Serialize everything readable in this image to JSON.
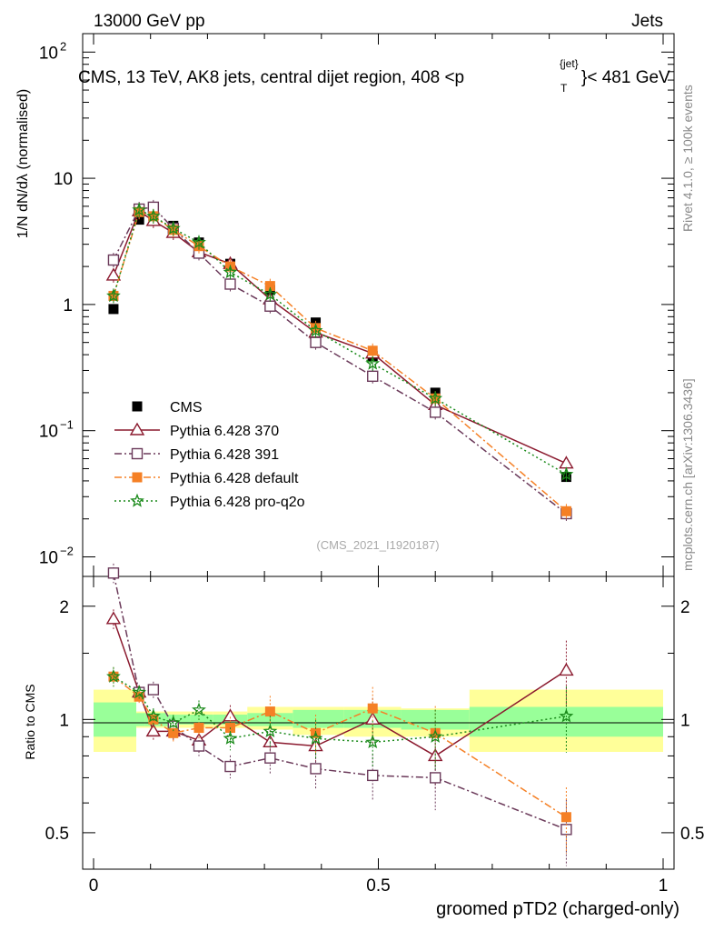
{
  "header": {
    "left": "13000 GeV pp",
    "right": "Jets",
    "title": "CMS, 13 TeV, AK8 jets, central dijet region, 408 <p",
    "title_sup": "{jet}",
    "title_sub": "T",
    "title_end": "}< 481 GeV",
    "watermark": "(CMS_2021_I1920187)"
  },
  "side": {
    "rivet": "Rivet 4.1.0, ≥ 100k events",
    "mcplots": "mcplots.cern.ch [arXiv:1306.3436]"
  },
  "axes": {
    "ylabel_main": "1/N dN/dλ (normalised)",
    "ylabel_ratio": "Ratio to CMS",
    "xlabel": "groomed pTD2 (charged-only)",
    "x_ticks": [
      "0",
      "0.5",
      "1"
    ],
    "y_ticks_main": [
      "10^-2",
      "10^-1",
      "1",
      "10",
      "10^2"
    ],
    "y_ticks_ratio": [
      "0.5",
      "1",
      "2"
    ]
  },
  "chart_data": {
    "type": "line",
    "xlabel": "groomed pTD2 (charged-only)",
    "ylabel": "1/N dN/dλ",
    "xlim": [
      0,
      1
    ],
    "ylim_main": [
      0.007,
      140
    ],
    "yscale_main": "log",
    "ylim_ratio": [
      0.4,
      2.4
    ],
    "yscale_ratio": "log",
    "bins": [
      [
        0,
        0.075
      ],
      [
        0.075,
        0.09
      ],
      [
        0.09,
        0.13
      ],
      [
        0.13,
        0.17
      ],
      [
        0.17,
        0.21
      ],
      [
        0.21,
        0.27
      ],
      [
        0.27,
        0.35
      ],
      [
        0.35,
        0.44
      ],
      [
        0.44,
        0.54
      ],
      [
        0.54,
        0.66
      ],
      [
        0.66,
        1.0
      ]
    ],
    "x": [
      0.035,
      0.08,
      0.105,
      0.14,
      0.185,
      0.24,
      0.31,
      0.39,
      0.49,
      0.6,
      0.83
    ],
    "series": [
      {
        "name": "CMS",
        "color": "#000000",
        "marker": "square-filled",
        "values": [
          0.92,
          4.7,
          5.0,
          4.2,
          3.1,
          2.1,
          1.3,
          0.72,
          0.39,
          0.2,
          0.043
        ]
      },
      {
        "name": "Pythia 6.428 370",
        "color": "#8b1a2f",
        "marker": "triangle-open",
        "line": "solid",
        "values": [
          1.7,
          5.5,
          4.6,
          3.7,
          2.6,
          2.1,
          1.1,
          0.6,
          0.41,
          0.16,
          0.055
        ],
        "ratio": [
          1.85,
          1.18,
          0.93,
          0.93,
          0.88,
          1.02,
          0.87,
          0.85,
          1.0,
          0.8,
          1.35
        ]
      },
      {
        "name": "Pythia 6.428 391",
        "color": "#6b3a5a",
        "marker": "square-open",
        "line": "dashdot",
        "values": [
          2.25,
          5.7,
          5.9,
          4.0,
          2.55,
          1.45,
          0.97,
          0.5,
          0.27,
          0.14,
          0.022
        ],
        "ratio": [
          2.45,
          1.18,
          1.2,
          0.96,
          0.85,
          0.75,
          0.79,
          0.74,
          0.71,
          0.7,
          0.51
        ]
      },
      {
        "name": "Pythia 6.428 default",
        "color": "#f58025",
        "marker": "square-filled",
        "line": "dashdot",
        "values": [
          1.17,
          5.4,
          5.0,
          3.9,
          2.9,
          2.0,
          1.4,
          0.65,
          0.43,
          0.18,
          0.023
        ],
        "ratio": [
          1.3,
          1.15,
          1.0,
          0.92,
          0.95,
          0.95,
          1.05,
          0.92,
          1.07,
          0.92,
          0.55
        ]
      },
      {
        "name": "Pythia 6.428 pro-q2o",
        "color": "#1a8a1a",
        "marker": "star",
        "line": "dotted",
        "values": [
          1.17,
          5.6,
          5.0,
          4.0,
          3.1,
          1.8,
          1.2,
          0.62,
          0.34,
          0.18,
          0.045
        ],
        "ratio": [
          1.3,
          1.18,
          1.02,
          0.98,
          1.06,
          0.89,
          0.93,
          0.89,
          0.87,
          0.9,
          1.02
        ]
      }
    ],
    "cms_uncertainty": {
      "green": [
        [
          0.9,
          1.11
        ],
        [
          0.96,
          1.04
        ],
        [
          0.96,
          1.04
        ],
        [
          0.97,
          1.03
        ],
        [
          0.97,
          1.03
        ],
        [
          0.97,
          1.03
        ],
        [
          0.96,
          1.04
        ],
        [
          0.95,
          1.06
        ],
        [
          0.95,
          1.06
        ],
        [
          0.94,
          1.06
        ],
        [
          0.9,
          1.08
        ]
      ],
      "yellow": [
        [
          0.82,
          1.2
        ],
        [
          0.95,
          1.05
        ],
        [
          0.95,
          1.05
        ],
        [
          0.95,
          1.05
        ],
        [
          0.95,
          1.05
        ],
        [
          0.95,
          1.05
        ],
        [
          0.94,
          1.08
        ],
        [
          0.91,
          1.08
        ],
        [
          0.9,
          1.08
        ],
        [
          0.9,
          1.07
        ],
        [
          0.82,
          1.2
        ]
      ]
    },
    "ratio_errors": [
      0.06,
      0.04,
      0.05,
      0.05,
      0.06,
      0.07,
      0.1,
      0.12,
      0.14,
      0.18,
      0.2
    ]
  }
}
